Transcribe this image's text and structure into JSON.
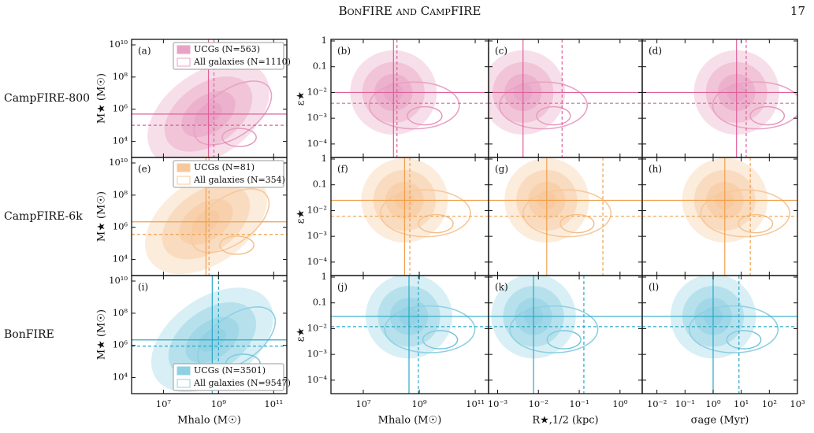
{
  "header": {
    "title": "BonFIRE and CampFIRE",
    "page": "17"
  },
  "axes": {
    "mhalo": {
      "label": "Mhalo (M☉)",
      "lim": [
        700000,
        300000000000
      ],
      "ticks": [
        {
          "value": 10000000,
          "label": "10⁷"
        },
        {
          "value": 1000000000,
          "label": "10⁹"
        },
        {
          "value": 100000000000,
          "label": "10¹¹"
        }
      ]
    },
    "mstar": {
      "label": "M★ (M☉)",
      "lim": [
        1000,
        22000000000
      ],
      "ticks": [
        {
          "value": 10000,
          "label": "10⁴"
        },
        {
          "value": 1000000,
          "label": "10⁶"
        },
        {
          "value": 100000000,
          "label": "10⁸"
        },
        {
          "value": 10000000000,
          "label": "10¹⁰"
        }
      ]
    },
    "eps": {
      "label": "ε★",
      "lim": [
        3e-05,
        1.15
      ],
      "ticks": [
        {
          "value": 0.0001,
          "label": "10⁻⁴"
        },
        {
          "value": 0.001,
          "label": "10⁻³"
        },
        {
          "value": 0.01,
          "label": "10⁻²"
        },
        0.1,
        1
      ]
    },
    "rhalf": {
      "label": "R★,1/2 (kpc)",
      "lim": [
        0.0006,
        3.5
      ],
      "ticks": [
        {
          "value": 0.001,
          "label": "10⁻³"
        },
        {
          "value": 0.01,
          "label": "10⁻²"
        },
        {
          "value": 0.1,
          "label": "10⁻¹"
        },
        {
          "value": 1,
          "label": "10⁰"
        }
      ]
    },
    "sigma": {
      "label": "σage (Myr)",
      "lim": [
        0.003,
        1000
      ],
      "ticks": [
        {
          "value": 0.01,
          "label": "10⁻²"
        },
        {
          "value": 0.1,
          "label": "10⁻¹"
        },
        {
          "value": 1,
          "label": "10⁰"
        },
        {
          "value": 10,
          "label": "10¹"
        },
        {
          "value": 100,
          "label": "10²"
        },
        {
          "value": 1000,
          "label": "10³"
        }
      ]
    }
  },
  "rows": [
    {
      "label": "CampFIRE-800",
      "color": "#e0609a",
      "fill": "#e8a3c4",
      "legend": [
        "UCGs (N=563)",
        "All galaxies (N=1110)"
      ],
      "legend_loc": "upper right",
      "panels": [
        {
          "letter": "(a)",
          "x_axis": "mhalo",
          "y_axis": "mstar",
          "vlines": [
            430000000,
            680000000
          ],
          "hlines": [
            500000,
            100000
          ]
        },
        {
          "letter": "(b)",
          "x_axis": "mhalo",
          "y_axis": "eps",
          "vlines": [
            120000000,
            160000000
          ],
          "hlines": [
            0.01,
            0.0038
          ]
        },
        {
          "letter": "(c)",
          "x_axis": "rhalf",
          "y_axis": "eps",
          "vlines": [
            0.0042,
            0.038
          ],
          "hlines": [
            0.01,
            0.0038
          ]
        },
        {
          "letter": "(d)",
          "x_axis": "sigma",
          "y_axis": "eps",
          "vlines": [
            6.8,
            15
          ],
          "hlines": [
            0.01,
            0.0038
          ]
        }
      ]
    },
    {
      "label": "CampFIRE-6k",
      "color": "#f0a04b",
      "fill": "#f7c89c",
      "legend": [
        "UCGs (N=81)",
        "All galaxies (N=354)"
      ],
      "legend_loc": "upper right",
      "panels": [
        {
          "letter": "(e)",
          "x_axis": "mhalo",
          "y_axis": "mstar",
          "vlines": [
            350000000,
            450000000
          ],
          "hlines": [
            2200000,
            360000
          ]
        },
        {
          "letter": "(f)",
          "x_axis": "mhalo",
          "y_axis": "eps",
          "vlines": [
            300000000,
            460000000
          ],
          "hlines": [
            0.025,
            0.006
          ]
        },
        {
          "letter": "(g)",
          "x_axis": "rhalf",
          "y_axis": "eps",
          "vlines": [
            0.016,
            0.38
          ],
          "hlines": [
            0.025,
            0.006
          ]
        },
        {
          "letter": "(h)",
          "x_axis": "sigma",
          "y_axis": "eps",
          "vlines": [
            2.6,
            21
          ],
          "hlines": [
            0.025,
            0.006
          ]
        }
      ]
    },
    {
      "label": "BonFIRE",
      "color": "#2aa8c8",
      "fill": "#8fd0e2",
      "legend": [
        "UCGs (N=3501)",
        "All galaxies (N=9547)"
      ],
      "legend_loc": "lower right",
      "panels": [
        {
          "letter": "(i)",
          "x_axis": "mhalo",
          "y_axis": "mstar",
          "vlines": [
            590000000,
            1000000000
          ],
          "hlines": [
            2200000,
            900000
          ]
        },
        {
          "letter": "(j)",
          "x_axis": "mhalo",
          "y_axis": "eps",
          "vlines": [
            430000000,
            930000000
          ],
          "hlines": [
            0.03,
            0.012
          ]
        },
        {
          "letter": "(k)",
          "x_axis": "rhalf",
          "y_axis": "eps",
          "vlines": [
            0.0076,
            0.13
          ],
          "hlines": [
            0.03,
            0.012
          ]
        },
        {
          "letter": "(l)",
          "x_axis": "sigma",
          "y_axis": "eps",
          "vlines": [
            1,
            8.3
          ],
          "hlines": [
            0.03,
            0.012
          ]
        }
      ]
    }
  ]
}
